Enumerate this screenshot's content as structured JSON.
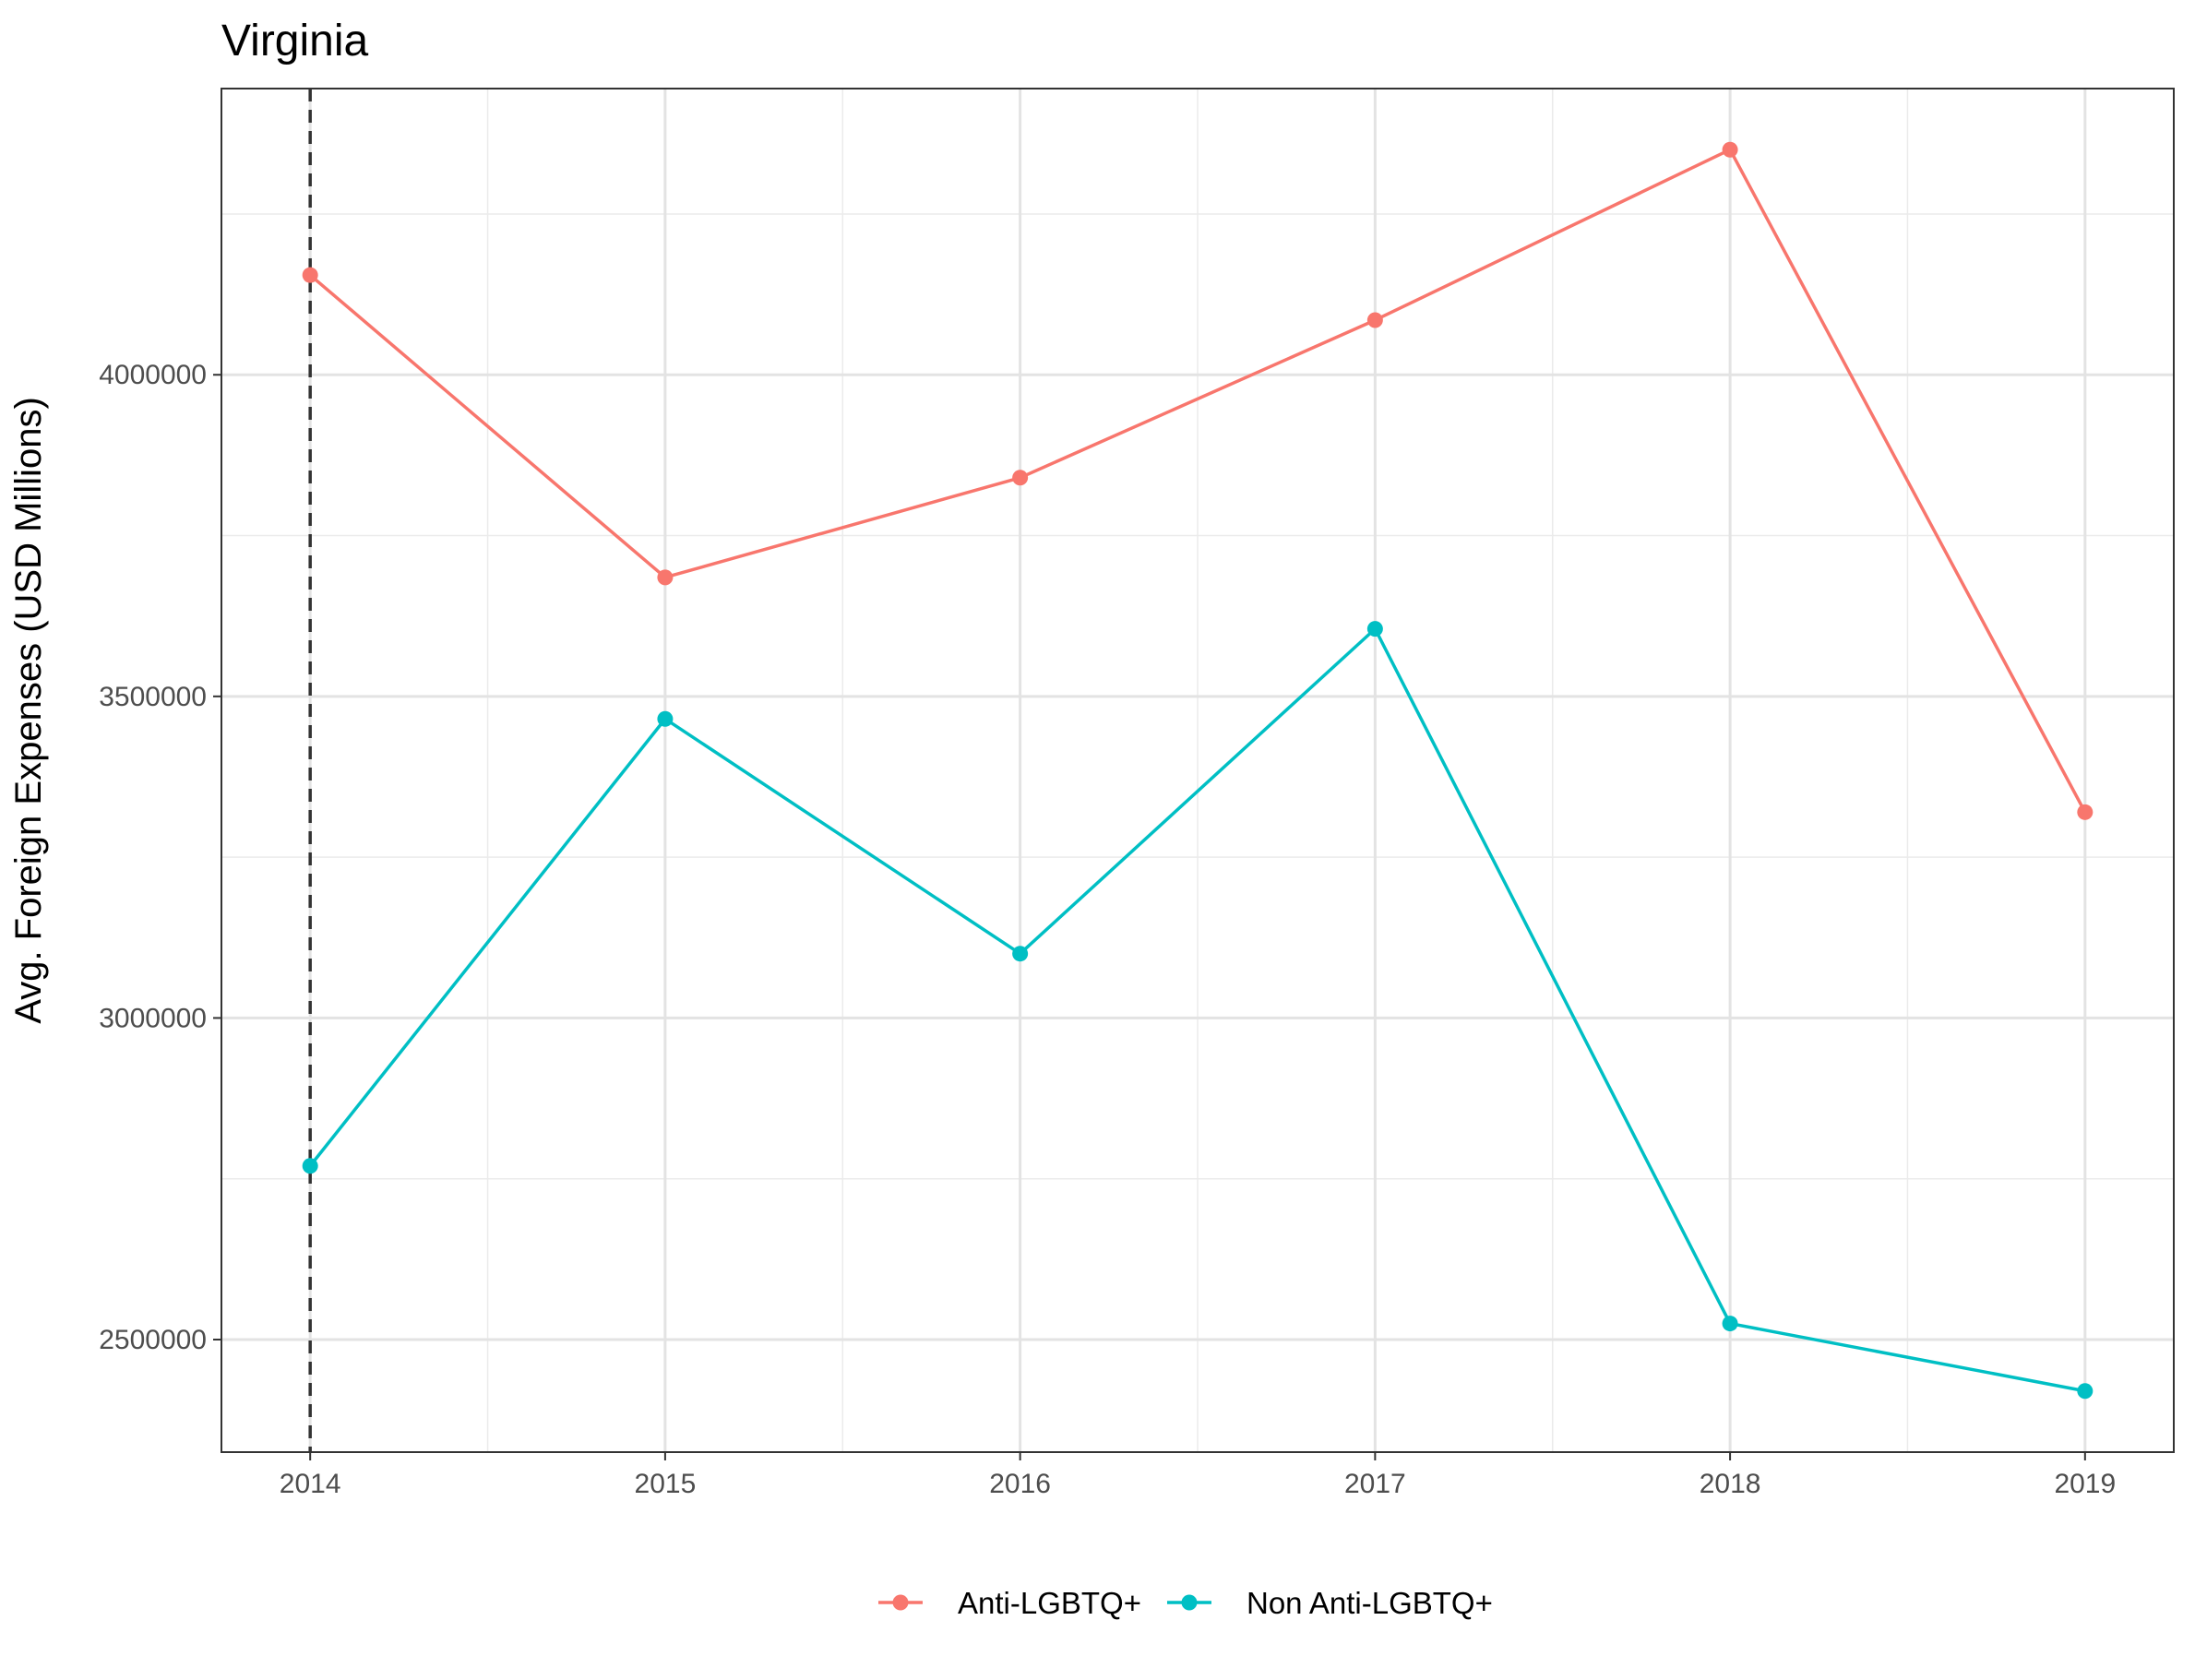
{
  "chart_data": {
    "type": "line",
    "title": "Virginia",
    "xlabel": "",
    "ylabel": "Avg. Foreign Expenses (USD Millions)",
    "x": [
      2014,
      2015,
      2016,
      2017,
      2018,
      2019
    ],
    "xlim": [
      2013.75,
      2019.25
    ],
    "ylim": [
      2325000,
      4445000
    ],
    "y_ticks": [
      2500000,
      3000000,
      3500000,
      4000000
    ],
    "y_tick_labels": [
      "2500000",
      "3000000",
      "3500000",
      "4000000"
    ],
    "x_tick_labels": [
      "2014",
      "2015",
      "2016",
      "2017",
      "2018",
      "2019"
    ],
    "grid": true,
    "legend_position": "bottom",
    "vline": {
      "x": 2014,
      "style": "dashed",
      "color": "#333333"
    },
    "series": [
      {
        "name": "Anti-LGBTQ+",
        "color": "#F8766D",
        "values": [
          4155000,
          3685000,
          3840000,
          4085000,
          4350000,
          3320000
        ]
      },
      {
        "name": "Non Anti-LGBTQ+",
        "color": "#00BFC4",
        "values": [
          2770000,
          3465000,
          3100000,
          3605000,
          2525000,
          2420000
        ]
      }
    ]
  }
}
